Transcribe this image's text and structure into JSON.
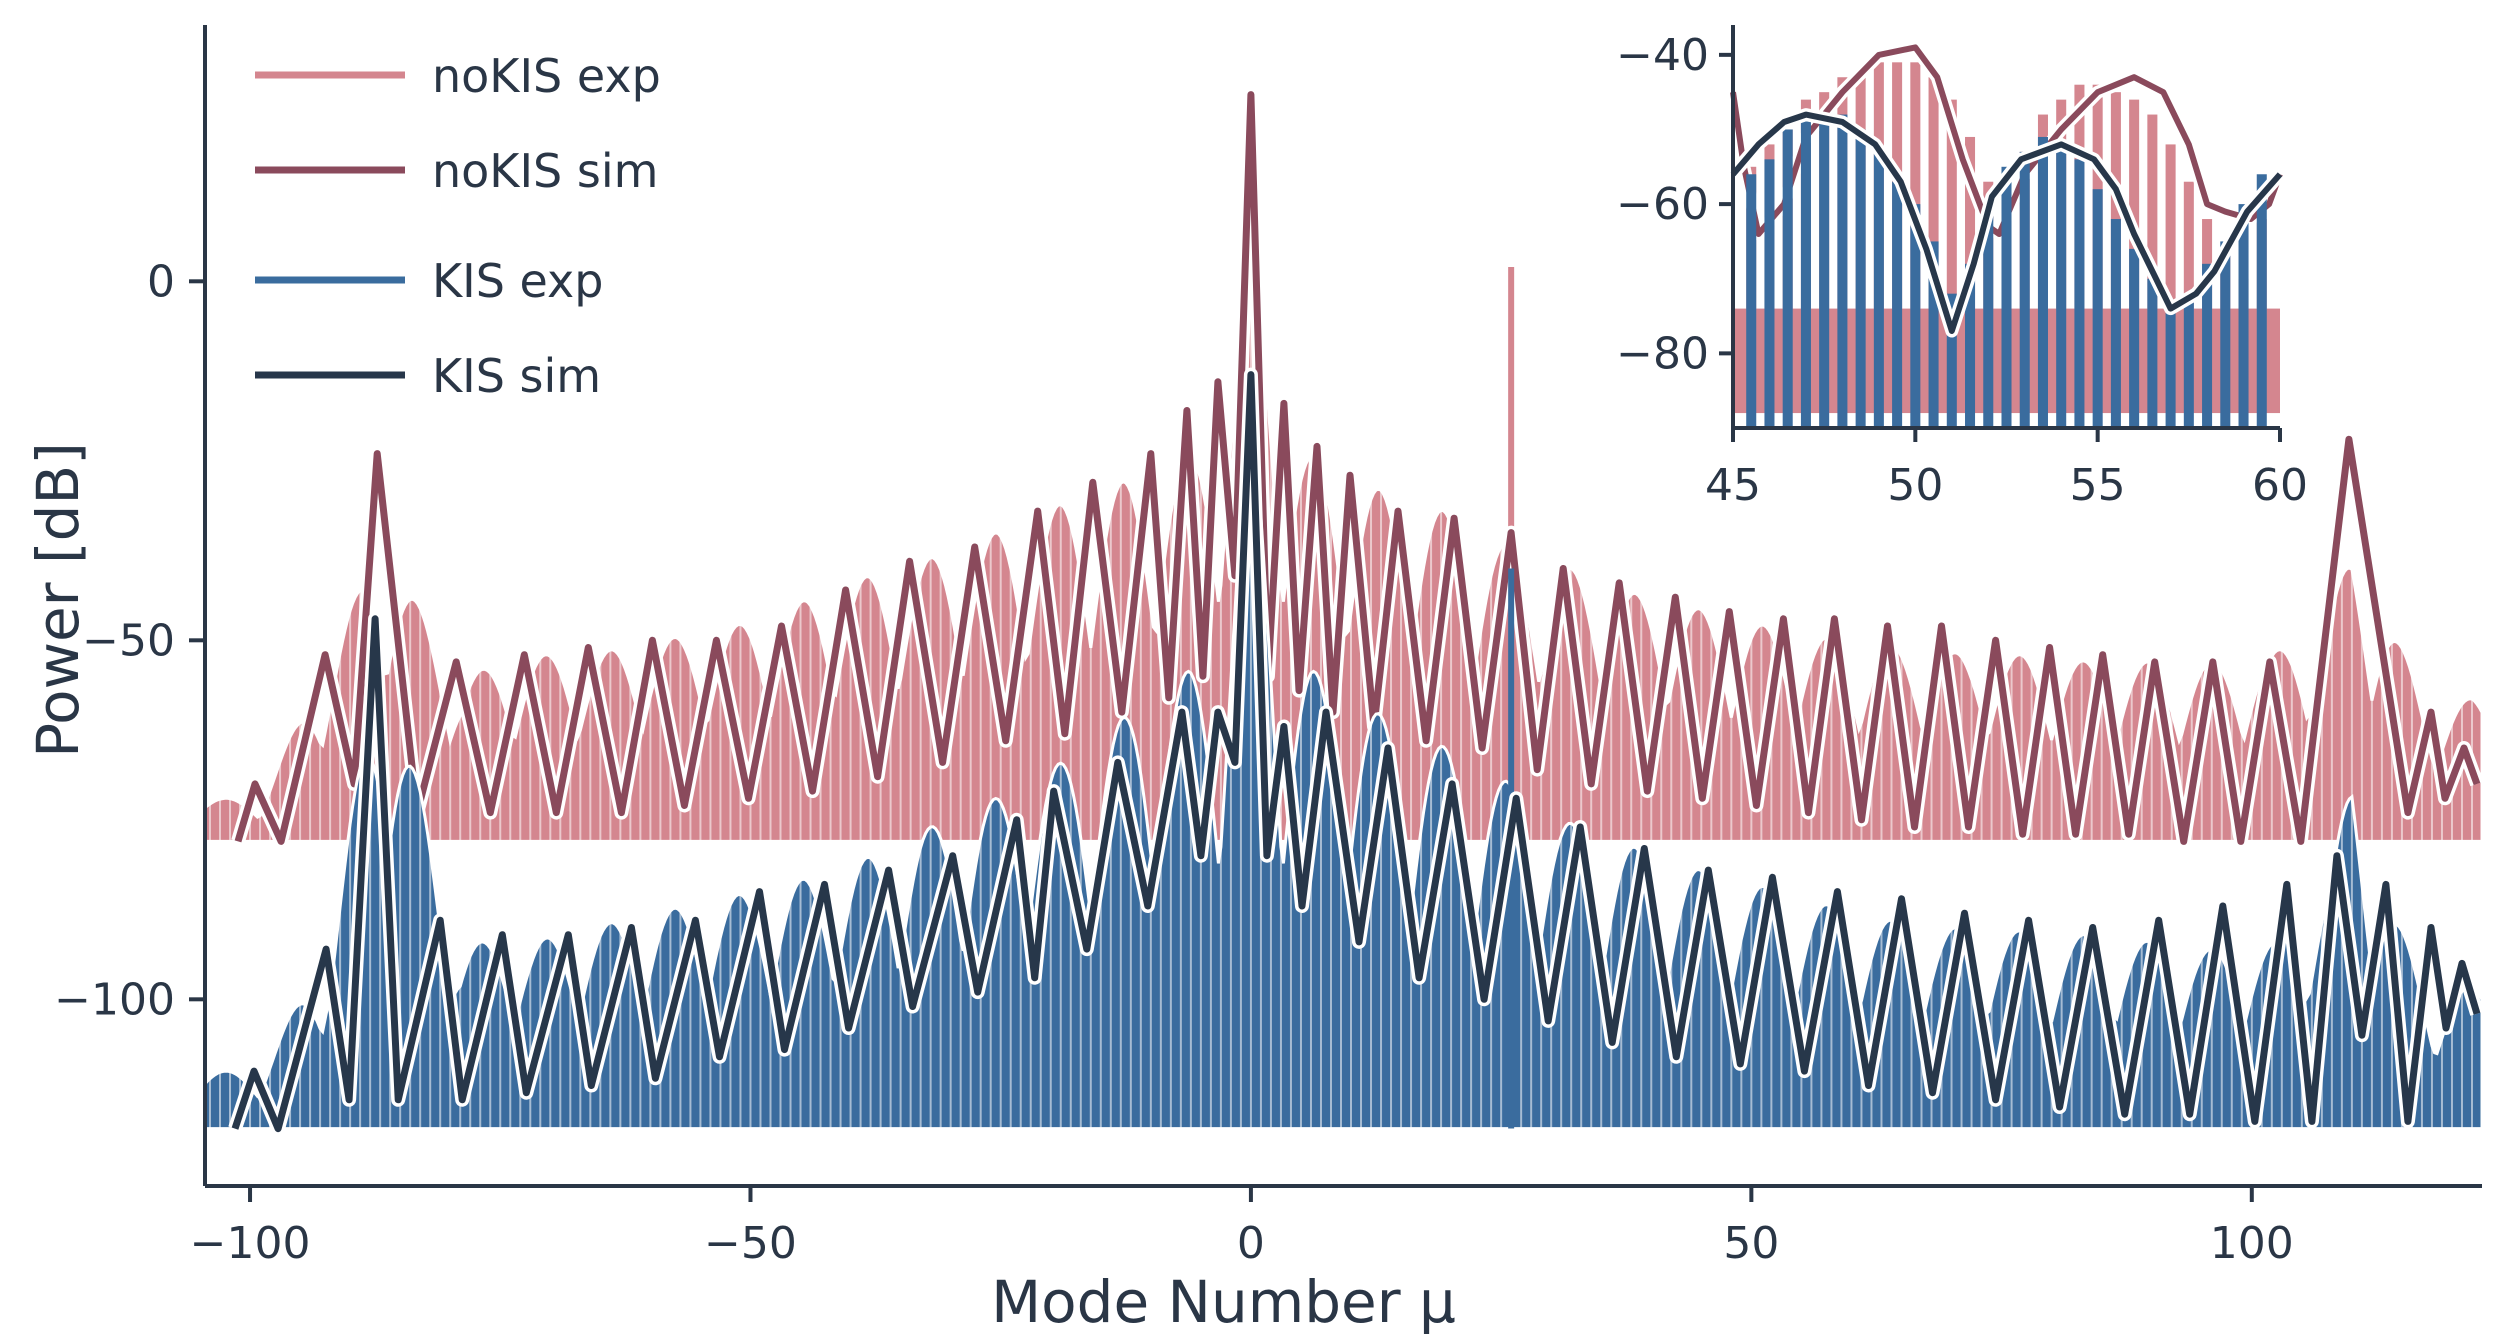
{
  "chart_data": [
    {
      "type": "line",
      "panel": "main",
      "xlabel": "Mode Number μ",
      "ylabel": "Power [dB]",
      "xlim": [
        -104.5,
        123
      ],
      "ylim": [
        -126,
        35
      ],
      "xticks": [
        -100,
        -50,
        0,
        50,
        100
      ],
      "yticks": [
        0,
        -50,
        -100
      ],
      "xtick_labels": [
        "−100",
        "−50",
        "0",
        "50",
        "100"
      ],
      "ytick_labels": [
        "0",
        "−50",
        "−100"
      ],
      "grid": false,
      "legend_position": "top-left",
      "series": [
        {
          "key": "noKIS_exp",
          "name": "noKIS exp",
          "color": "#d4868f",
          "style": "comb",
          "floor": -78,
          "envelope_peaks": {
            "x": [
              -99,
              -92,
              -87,
              -79,
              -72,
              -66,
              -60,
              -54,
              -47,
              -41,
              -35,
              -29,
              -22,
              -16,
              -10,
              -6,
              -3,
              0,
              3,
              6,
              10,
              16,
              21,
              26,
              32,
              37,
              43,
              49,
              54,
              60,
              66,
              72,
              78,
              84,
              90,
              96,
              102,
              108,
              110,
              113,
              118,
              122
            ],
            "y": [
              -72,
              -52,
              -36,
              -55,
              -52,
              -52,
              -50,
              -49,
              -46,
              -42,
              -40,
              -37,
              -33,
              -29,
              -27,
              -24,
              -18,
              10,
              -18,
              -24,
              -28,
              -30,
              -33,
              -37,
              -40,
              -43,
              -45,
              -47,
              -49,
              -50,
              -51,
              -52,
              -52,
              -53,
              -53,
              -53,
              -52,
              -45,
              -37,
              -45,
              -60,
              -58
            ]
          },
          "spur": {
            "x": 26,
            "y": 2
          }
        },
        {
          "key": "noKIS_sim",
          "name": "noKIS sim",
          "color": "#8a4a5c",
          "style": "line",
          "peaks": {
            "x": [
              -99.5,
              -92.5,
              -87.3,
              -79.4,
              -72.6,
              -66.2,
              -59.8,
              -53.4,
              -46.9,
              -40.5,
              -34.1,
              -27.6,
              -21.3,
              -15.8,
              -10.0,
              -6.4,
              -3.3,
              0.0,
              3.3,
              6.6,
              9.9,
              14.7,
              20.3,
              26.0,
              31.2,
              36.8,
              42.4,
              47.8,
              53.2,
              58.3,
              63.6,
              69.0,
              74.4,
              79.8,
              85.1,
              90.3,
              96.1,
              101.8,
              109.7,
              117.9,
              121.2
            ],
            "y": [
              -70,
              -52,
              -24,
              -53,
              -52,
              -51,
              -50,
              -50,
              -48,
              -43,
              -39,
              -37,
              -32,
              -28,
              -24,
              -18,
              -14,
              26,
              -17,
              -23,
              -27,
              -32,
              -33,
              -35,
              -40,
              -42,
              -44,
              -46,
              -47,
              -47,
              -48,
              -48,
              -50,
              -51,
              -52,
              -53,
              -53,
              -53,
              -22,
              -60,
              -65
            ]
          },
          "troughs": {
            "x": [
              -101.2,
              -96.9,
              -89.6,
              -83.3,
              -76.0,
              -69.4,
              -62.9,
              -56.6,
              -50.2,
              -43.8,
              -37.3,
              -30.8,
              -24.5,
              -18.6,
              -12.9,
              -8.2,
              -4.8,
              -1.6,
              1.7,
              4.8,
              8.2,
              12.3,
              17.5,
              23.1,
              28.6,
              34.0,
              39.6,
              45.1,
              50.5,
              55.7,
              61.0,
              66.3,
              71.7,
              77.1,
              82.4,
              87.7,
              93.2,
              98.9,
              104.9,
              115.6,
              119.3,
              122.5
            ],
            "y": [
              -78,
              -78,
              -70,
              -74,
              -74,
              -74,
              -74,
              -73,
              -72,
              -71,
              -69,
              -67,
              -64,
              -63,
              -60,
              -58,
              -55,
              -41,
              -55,
              -57,
              -60,
              -62,
              -64,
              -65,
              -68,
              -70,
              -71,
              -72,
              -73,
              -74,
              -75,
              -76,
              -76,
              -77,
              -77,
              -77,
              -78,
              -78,
              -78,
              -74,
              -72,
              -70
            ]
          }
        },
        {
          "key": "KIS_exp",
          "name": "KIS exp",
          "color": "#3a6c9e",
          "style": "comb",
          "floor": -118,
          "envelope_peaks": {
            "x": [
              -99,
              -92,
              -87,
              -79,
              -72,
              -66,
              -60,
              -53,
              -47,
              -41,
              -35,
              -29,
              -22,
              -16,
              -10,
              -6,
              -3,
              0,
              3,
              6,
              10,
              15,
              21,
              26,
              31,
              37,
              42,
              48,
              53,
              58,
              64,
              69,
              74,
              80,
              85,
              90,
              96,
              102,
              108,
              110,
              113,
              118,
              122
            ],
            "y": [
              -110,
              -92,
              -50,
              -92,
              -92,
              -90,
              -88,
              -86,
              -84,
              -82,
              -78,
              -74,
              -70,
              -64,
              -58,
              -54,
              -52,
              -16,
              -52,
              -54,
              -58,
              -62,
              -66,
              -70,
              -75,
              -78,
              -81,
              -83,
              -85,
              -87,
              -89,
              -90,
              -90,
              -91,
              -91,
              -92,
              -93,
              -92,
              -82,
              -68,
              -84,
              -100,
              -98
            ]
          },
          "floor_bumps": [
            {
              "x0": -3,
              "x1": 17,
              "top": -88
            },
            {
              "x0": 19,
              "x1": 33,
              "top": -94
            }
          ],
          "spur": {
            "x": 26,
            "y": -40
          }
        },
        {
          "key": "KIS_sim",
          "name": "KIS sim",
          "color": "#27374a",
          "style": "line",
          "peaks": {
            "x": [
              -99.6,
              -92.4,
              -87.5,
              -81.0,
              -74.8,
              -68.2,
              -61.9,
              -55.5,
              -49.1,
              -42.6,
              -36.2,
              -29.8,
              -23.4,
              -19.7,
              -13.3,
              -6.9,
              -3.3,
              0.0,
              3.3,
              7.5,
              13.7,
              20.1,
              26.5,
              32.9,
              39.3,
              45.7,
              52.1,
              58.6,
              65.0,
              71.3,
              77.7,
              84.1,
              90.7,
              97.1,
              103.5,
              108.5,
              113.4,
              117.9,
              121.0
            ],
            "y": [
              -110,
              -93,
              -47,
              -89,
              -91,
              -91,
              -90,
              -89,
              -85,
              -84,
              -82,
              -80,
              -75,
              -71,
              -67,
              -60,
              -60,
              -13,
              -62,
              -60,
              -65,
              -70,
              -72,
              -76,
              -79,
              -82,
              -83,
              -85,
              -86,
              -88,
              -89,
              -90,
              -89,
              -87,
              -84,
              -80,
              -84,
              -90,
              -95
            ]
          },
          "troughs": {
            "x": [
              -101.5,
              -97.2,
              -90.1,
              -85.2,
              -78.8,
              -72.4,
              -65.9,
              -59.5,
              -53.1,
              -46.6,
              -40.2,
              -33.8,
              -27.3,
              -21.6,
              -16.4,
              -10.3,
              -5.0,
              -1.6,
              1.6,
              5.1,
              10.8,
              16.8,
              23.3,
              29.7,
              36.1,
              42.5,
              48.9,
              55.3,
              61.7,
              68.1,
              74.4,
              80.8,
              87.3,
              93.8,
              100.3,
              106.0,
              111.0,
              115.6,
              119.4,
              122.5
            ],
            "y": [
              -118,
              -118,
              -114,
              -114,
              -114,
              -113,
              -112,
              -111,
              -108,
              -107,
              -104,
              -101,
              -99,
              -97,
              -93,
              -87,
              -80,
              -67,
              -80,
              -87,
              -92,
              -97,
              -100,
              -103,
              -106,
              -108,
              -109,
              -110,
              -112,
              -113,
              -114,
              -115,
              -116,
              -116,
              -117,
              -117,
              -105,
              -117,
              -104,
              -102
            ]
          }
        }
      ]
    },
    {
      "type": "line",
      "panel": "inset",
      "xlim": [
        45,
        60
      ],
      "ylim": [
        -90,
        -36
      ],
      "xticks": [
        45,
        50,
        55,
        60
      ],
      "yticks": [
        -40,
        -60,
        -80
      ],
      "xtick_labels": [
        "45",
        "50",
        "55",
        "60"
      ],
      "ytick_labels": [
        "−40",
        "−60",
        "−80"
      ],
      "series": [
        {
          "key": "noKIS_exp",
          "color": "#d4868f",
          "style": "comb",
          "floor": -74,
          "bars": {
            "x": [
              45.5,
              46,
              46.5,
              47,
              47.5,
              48,
              48.5,
              49,
              49.5,
              50,
              50.5,
              51,
              51.5,
              52,
              52.5,
              53,
              53.5,
              54,
              54.5,
              55,
              55.5,
              56,
              56.5,
              57,
              57.5,
              58,
              58.5,
              59,
              59.5
            ],
            "y": [
              -55,
              -52,
              -50,
              -46,
              -45,
              -43,
              -42,
              -41,
              -41,
              -41,
              -43,
              -46,
              -51,
              -57,
              -58,
              -53,
              -48,
              -46,
              -44,
              -44,
              -45,
              -46,
              -48,
              -52,
              -57,
              -62,
              -66,
              -70,
              -62
            ]
          }
        },
        {
          "key": "noKIS_sim",
          "color": "#8a4a5c",
          "style": "line",
          "points": {
            "x": [
              45.0,
              45.3,
              45.7,
              46.4,
              47.0,
              48.0,
              49.0,
              50.0,
              50.6,
              51.3,
              52.0,
              52.3,
              53.0,
              54.0,
              55.0,
              56.0,
              56.8,
              57.5,
              58.0,
              58.5,
              59.2,
              59.7,
              60.0
            ],
            "y": [
              -45,
              -55,
              -64,
              -60,
              -51,
              -45,
              -40,
              -39,
              -43,
              -54,
              -63,
              -64,
              -56,
              -50,
              -45,
              -43,
              -45,
              -52,
              -60,
              -61,
              -62,
              -60,
              -56
            ]
          }
        },
        {
          "key": "KIS_exp",
          "color": "#3a6c9e",
          "style": "comb",
          "floor": -88,
          "bars": {
            "x": [
              45.5,
              46,
              46.5,
              47,
              47.5,
              48,
              48.5,
              49,
              49.5,
              50,
              50.5,
              51,
              51.5,
              52,
              52.5,
              53,
              53.5,
              54,
              54.5,
              55,
              55.5,
              56,
              56.5,
              57,
              57.5,
              58,
              58.5,
              59,
              59.5
            ],
            "y": [
              -56,
              -54,
              -50,
              -48,
              -48,
              -48,
              -50,
              -53,
              -57,
              -60,
              -65,
              -72,
              -68,
              -60,
              -55,
              -53,
              -51,
              -52,
              -54,
              -58,
              -62,
              -66,
              -70,
              -74,
              -72,
              -68,
              -65,
              -60,
              -56
            ]
          }
        },
        {
          "key": "KIS_sim",
          "color": "#27374a",
          "style": "line",
          "points": {
            "x": [
              45.0,
              45.7,
              46.4,
              47.0,
              48.0,
              48.9,
              49.6,
              50.3,
              51.0,
              51.6,
              52.1,
              52.9,
              54.0,
              54.9,
              55.5,
              56.0,
              56.6,
              57.0,
              57.7,
              58.2,
              59.1,
              60.0
            ],
            "y": [
              -56,
              -52,
              -49,
              -48,
              -49,
              -52,
              -57,
              -66,
              -77,
              -68,
              -59,
              -54,
              -52,
              -54,
              -58,
              -64,
              -70,
              -74,
              -72,
              -69,
              -61,
              -56
            ]
          }
        }
      ]
    }
  ],
  "legend": [
    {
      "label": "noKIS exp",
      "color": "#d4868f"
    },
    {
      "label": "noKIS sim",
      "color": "#8a4a5c"
    },
    {
      "label": "KIS exp",
      "color": "#3a6c9e"
    },
    {
      "label": "KIS sim",
      "color": "#27374a"
    }
  ]
}
